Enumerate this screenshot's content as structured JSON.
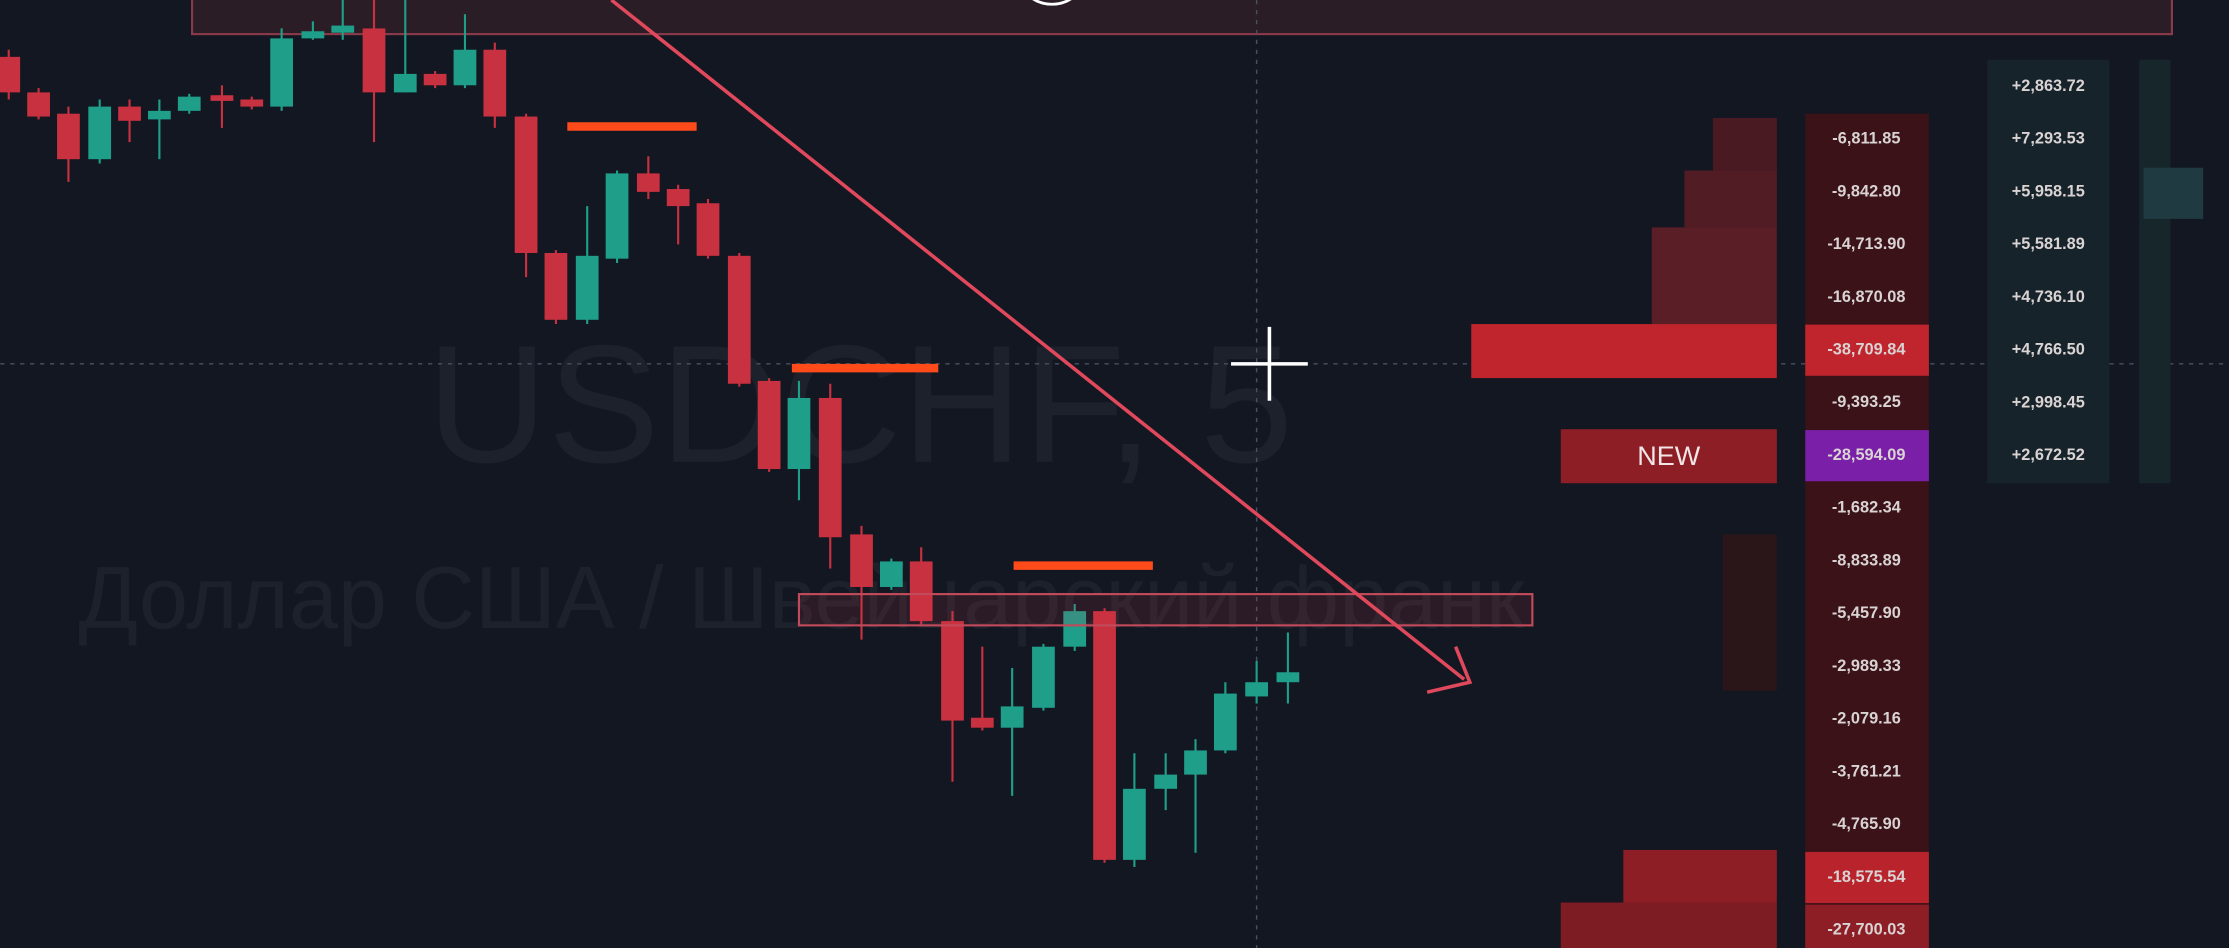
{
  "watermark": {
    "symbol": "USDCHF, 5",
    "description": "Доллар США / Швейцарский франк"
  },
  "new_label": "NEW",
  "delta_column": [
    "-6,811.85",
    "-9,842.80",
    "-14,713.90",
    "-16,870.08",
    "-38,709.84",
    "-9,393.25",
    "-28,594.09",
    "-1,682.34",
    "-8,833.89",
    "-5,457.90",
    "-2,989.33",
    "-2,079.16",
    "-3,761.21",
    "-4,765.90",
    "-18,575.54",
    "-27,700.03"
  ],
  "right_column": [
    "+2,863.72",
    "+7,293.53",
    "+5,958.15",
    "+5,581.89",
    "+4,736.10",
    "+4,766.50",
    "+2,998.45",
    "+2,672.52"
  ]
}
